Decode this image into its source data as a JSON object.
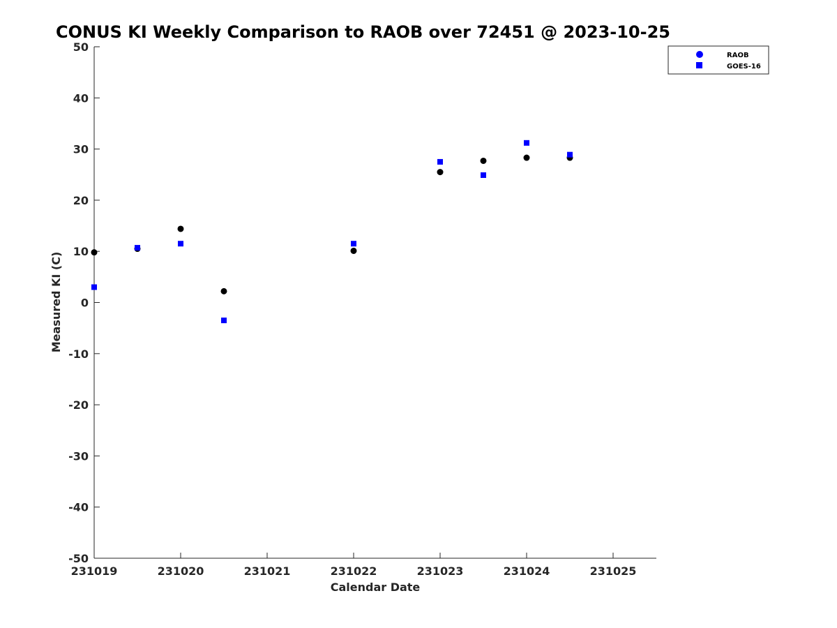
{
  "chart_data": {
    "type": "scatter",
    "title": "CONUS KI Weekly Comparison to RAOB over 72451 @ 2023-10-25",
    "xlabel": "Calendar Date",
    "ylabel": "Measured KI (C)",
    "xlim": [
      0,
      6.5
    ],
    "ylim": [
      -50,
      50
    ],
    "x_ticks": [
      {
        "value": 0,
        "label": "231019"
      },
      {
        "value": 1,
        "label": "231020"
      },
      {
        "value": 2,
        "label": "231021"
      },
      {
        "value": 3,
        "label": "231022"
      },
      {
        "value": 4,
        "label": "231023"
      },
      {
        "value": 5,
        "label": "231024"
      },
      {
        "value": 6,
        "label": "231025"
      }
    ],
    "y_ticks": [
      {
        "value": 50,
        "label": "50"
      },
      {
        "value": 40,
        "label": "40"
      },
      {
        "value": 30,
        "label": "30"
      },
      {
        "value": 20,
        "label": "20"
      },
      {
        "value": 10,
        "label": "10"
      },
      {
        "value": 0,
        "label": "0"
      },
      {
        "value": -10,
        "label": "-10"
      },
      {
        "value": -20,
        "label": "-20"
      },
      {
        "value": -30,
        "label": "-30"
      },
      {
        "value": -40,
        "label": "-40"
      },
      {
        "value": -50,
        "label": "-50"
      }
    ],
    "grid": false,
    "legend_position": "top-right",
    "series": [
      {
        "name": "RAOB",
        "marker": "circle",
        "color": "#000000",
        "legend_color": "#0000ff",
        "points": [
          {
            "x": 0,
            "y": 9.8
          },
          {
            "x": 0.5,
            "y": 10.5
          },
          {
            "x": 1,
            "y": 14.4
          },
          {
            "x": 1.5,
            "y": 2.2
          },
          {
            "x": 3,
            "y": 10.1
          },
          {
            "x": 4,
            "y": 25.5
          },
          {
            "x": 4.5,
            "y": 27.7
          },
          {
            "x": 5,
            "y": 28.3
          },
          {
            "x": 5.5,
            "y": 28.3
          }
        ]
      },
      {
        "name": "GOES-16",
        "marker": "square",
        "color": "#0000ff",
        "legend_color": "#0000ff",
        "points": [
          {
            "x": 0,
            "y": 3.0
          },
          {
            "x": 0.5,
            "y": 10.7
          },
          {
            "x": 1,
            "y": 11.5
          },
          {
            "x": 1.5,
            "y": -3.5
          },
          {
            "x": 3,
            "y": 11.5
          },
          {
            "x": 4,
            "y": 27.5
          },
          {
            "x": 4.5,
            "y": 24.9
          },
          {
            "x": 5,
            "y": 31.2
          },
          {
            "x": 5.5,
            "y": 28.9
          }
        ]
      }
    ]
  }
}
